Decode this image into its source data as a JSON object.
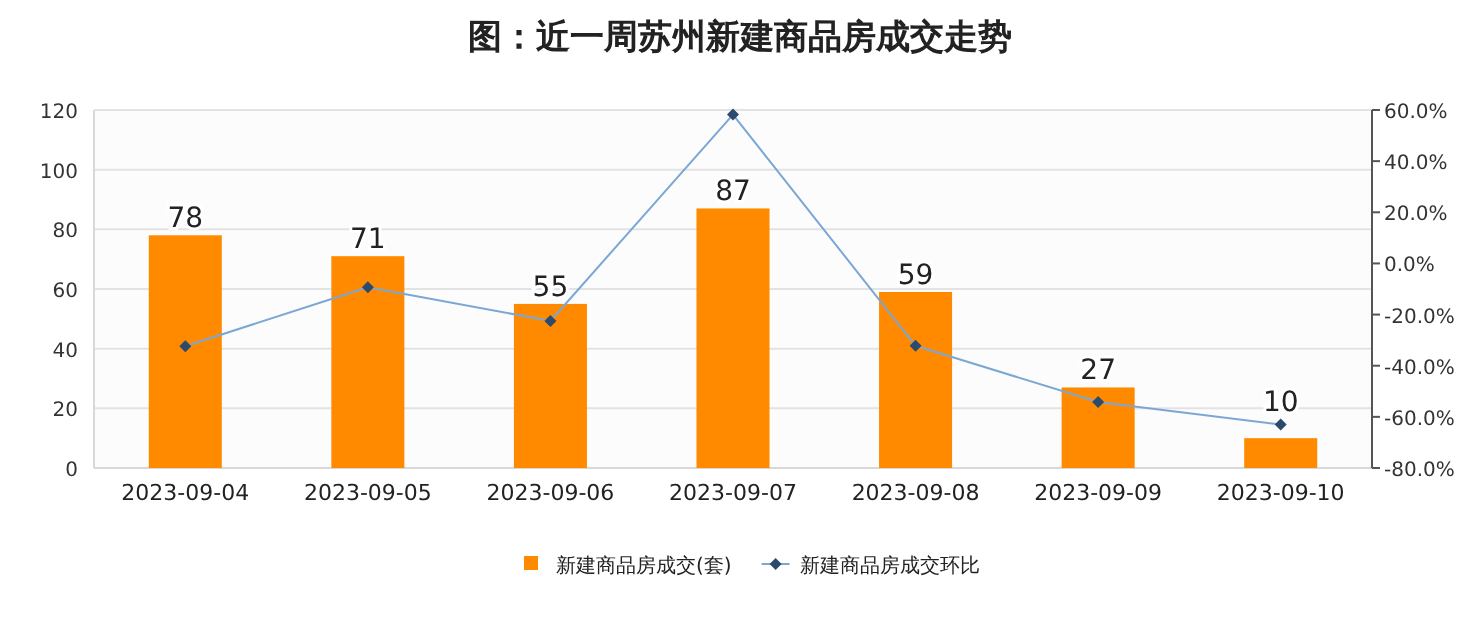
{
  "chart_data": {
    "type": "bar",
    "title": "图：近一周苏州新建商品房成交走势",
    "categories": [
      "2023-09-04",
      "2023-09-05",
      "2023-09-06",
      "2023-09-07",
      "2023-09-08",
      "2023-09-09",
      "2023-09-10"
    ],
    "series": [
      {
        "name": "新建商品房成交(套)",
        "color": "#ff8a00",
        "values": [
          78,
          71,
          55,
          87,
          59,
          27,
          10
        ],
        "value_labels": [
          "78",
          "71",
          "55",
          "87",
          "59",
          "27",
          "10"
        ]
      },
      {
        "name": "新建商品房成交环比",
        "type": "line",
        "axis": "y2",
        "color": "#7ba7d4",
        "marker": "diamond",
        "values": [
          -32.4,
          -9.3,
          -22.5,
          58.2,
          -32.2,
          -54.2,
          -63.0
        ]
      }
    ],
    "ylim": [
      0,
      120
    ],
    "yticks": [
      0,
      20,
      40,
      60,
      80,
      100,
      120
    ],
    "y2lim": [
      -80,
      60
    ],
    "y2ticks": [
      {
        "value": -80,
        "label": "-80.0%"
      },
      {
        "value": -60,
        "label": "-60.0%"
      },
      {
        "value": -40,
        "label": "-40.0%"
      },
      {
        "value": -20,
        "label": "-20.0%"
      },
      {
        "value": 0,
        "label": "0.0%"
      },
      {
        "value": 20,
        "label": "20.0%"
      },
      {
        "value": 40,
        "label": "40.0%"
      },
      {
        "value": 60,
        "label": "60.0%"
      }
    ],
    "grid": "y",
    "legend": "bottom"
  }
}
